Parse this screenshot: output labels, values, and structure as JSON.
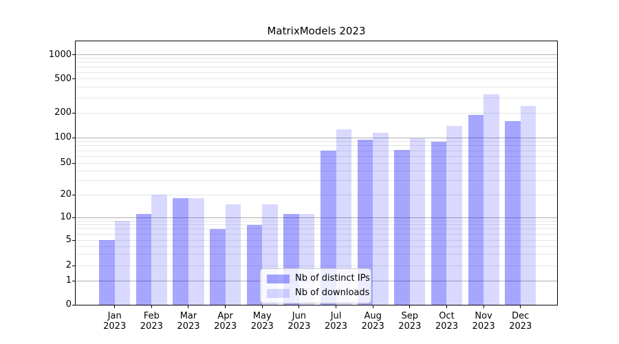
{
  "figure": {
    "background": "#ffffff"
  },
  "chart_data": {
    "type": "bar",
    "title": "MatrixModels 2023",
    "categories": [
      "Jan",
      "Feb",
      "Mar",
      "Apr",
      "May",
      "Jun",
      "Jul",
      "Aug",
      "Sep",
      "Oct",
      "Nov",
      "Dec"
    ],
    "category_year": "2023",
    "series": [
      {
        "name": "Nb of distinct IPs",
        "color": "rgba(0,0,255,0.35)",
        "values": [
          5,
          11,
          18,
          7,
          8,
          11,
          70,
          95,
          72,
          90,
          190,
          160
        ]
      },
      {
        "name": "Nb of downloads",
        "color": "rgba(0,0,255,0.15)",
        "values": [
          9,
          20,
          18,
          15,
          15,
          11,
          127,
          115,
          98,
          140,
          330,
          240
        ]
      }
    ],
    "y_ticks": [
      0,
      1,
      2,
      5,
      10,
      20,
      50,
      100,
      200,
      500,
      1000
    ],
    "y_scale": "symlog",
    "ylim": [
      0,
      1460
    ],
    "xlabel": "",
    "ylabel": "",
    "grid": true,
    "legend": {
      "position": "lower center"
    },
    "colors": {
      "bar_distinct_ips": "rgba(0,0,255,0.35)",
      "bar_downloads": "rgba(0,0,255,0.15)",
      "major_grid": "rgba(110,110,110,0.55)",
      "minor_grid": "rgba(170,170,170,0.30)",
      "axis": "#000000"
    }
  }
}
